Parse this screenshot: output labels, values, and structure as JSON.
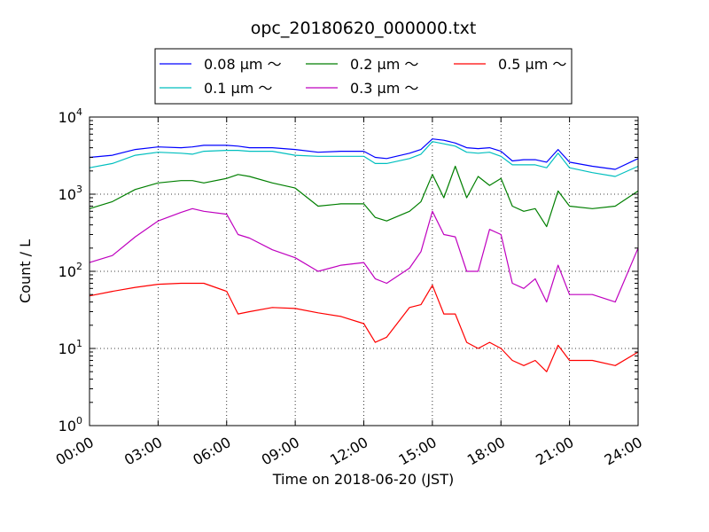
{
  "chart_data": {
    "type": "line",
    "title": "opc_20180620_000000.txt",
    "xlabel": "Time on 2018-06-20 (JST)",
    "ylabel": "Count / L",
    "yscale": "log",
    "ylim": [
      1,
      10000
    ],
    "xlim": [
      "00:00",
      "24:00"
    ],
    "x_ticks": [
      "00:00",
      "03:00",
      "06:00",
      "09:00",
      "12:00",
      "15:00",
      "18:00",
      "21:00",
      "24:00"
    ],
    "y_ticks": [
      {
        "base": "10",
        "exp": "0"
      },
      {
        "base": "10",
        "exp": "1"
      },
      {
        "base": "10",
        "exp": "2"
      },
      {
        "base": "10",
        "exp": "3"
      },
      {
        "base": "10",
        "exp": "4"
      }
    ],
    "grid": true,
    "legend_position": "top-center",
    "x": [
      "00:00",
      "01:00",
      "02:00",
      "03:00",
      "04:00",
      "04:30",
      "05:00",
      "06:00",
      "06:30",
      "07:00",
      "08:00",
      "09:00",
      "10:00",
      "11:00",
      "12:00",
      "12:30",
      "13:00",
      "14:00",
      "14:30",
      "15:00",
      "15:30",
      "16:00",
      "16:30",
      "17:00",
      "17:30",
      "18:00",
      "18:30",
      "19:00",
      "19:30",
      "20:00",
      "20:30",
      "21:00",
      "22:00",
      "23:00",
      "24:00"
    ],
    "series": [
      {
        "name": "0.08 μm ～",
        "color": "#0000ff",
        "values": [
          3000,
          3200,
          3800,
          4100,
          4000,
          4100,
          4300,
          4300,
          4200,
          4000,
          4000,
          3800,
          3500,
          3600,
          3600,
          3000,
          2900,
          3400,
          3800,
          5200,
          5000,
          4600,
          4000,
          3900,
          4000,
          3600,
          2700,
          2800,
          2800,
          2600,
          3800,
          2600,
          2300,
          2100,
          2900
        ]
      },
      {
        "name": "0.1 μm ～",
        "color": "#00bfbf",
        "values": [
          2200,
          2500,
          3200,
          3500,
          3400,
          3300,
          3600,
          3700,
          3700,
          3600,
          3600,
          3200,
          3100,
          3100,
          3100,
          2500,
          2500,
          2900,
          3300,
          4800,
          4500,
          4200,
          3500,
          3400,
          3500,
          3100,
          2400,
          2400,
          2400,
          2200,
          3400,
          2200,
          1900,
          1700,
          2300
        ]
      },
      {
        "name": "0.2 μm ～",
        "color": "#007f00",
        "values": [
          650,
          800,
          1150,
          1400,
          1500,
          1500,
          1400,
          1600,
          1800,
          1700,
          1400,
          1200,
          700,
          750,
          750,
          500,
          450,
          600,
          800,
          1800,
          900,
          2300,
          900,
          1700,
          1300,
          1600,
          700,
          600,
          650,
          380,
          1100,
          700,
          650,
          700,
          1100
        ]
      },
      {
        "name": "0.3 μm ～",
        "color": "#bf00bf",
        "values": [
          130,
          160,
          280,
          450,
          580,
          650,
          600,
          550,
          300,
          270,
          190,
          150,
          100,
          120,
          130,
          80,
          70,
          110,
          180,
          600,
          300,
          280,
          100,
          100,
          350,
          300,
          70,
          60,
          80,
          40,
          120,
          50,
          50,
          40,
          200
        ]
      },
      {
        "name": "0.5 μm ～",
        "color": "#ff0000",
        "values": [
          48,
          55,
          62,
          68,
          70,
          70,
          70,
          55,
          28,
          30,
          34,
          33,
          29,
          26,
          21,
          12,
          14,
          34,
          37,
          66,
          28,
          28,
          12,
          10,
          12,
          10,
          7,
          6,
          7,
          5,
          11,
          7,
          7,
          6,
          9
        ]
      }
    ]
  }
}
